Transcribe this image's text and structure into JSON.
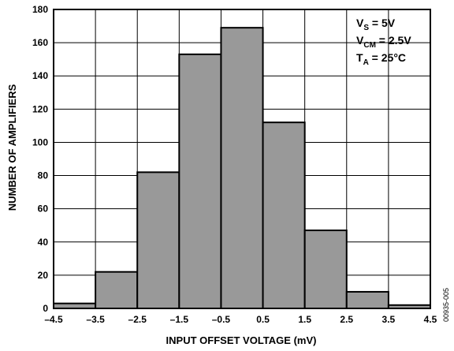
{
  "chart_data": {
    "type": "bar",
    "title": "",
    "xlabel": "INPUT OFFSET VOLTAGE (mV)",
    "ylabel": "NUMBER OF AMPLIFIERS",
    "bin_edges": [
      -4.5,
      -3.5,
      -2.5,
      -1.5,
      -0.5,
      0.5,
      1.5,
      2.5,
      3.5,
      4.5
    ],
    "values": [
      3,
      22,
      82,
      153,
      169,
      112,
      47,
      10,
      2
    ],
    "xlim": [
      -4.5,
      4.5
    ],
    "ylim": [
      0,
      180
    ],
    "xticks": [
      -4.5,
      -3.5,
      -2.5,
      -1.5,
      -0.5,
      0.5,
      1.5,
      2.5,
      3.5,
      4.5
    ],
    "xtick_labels": [
      "–4.5",
      "–3.5",
      "–2.5",
      "–1.5",
      "–0.5",
      "0.5",
      "1.5",
      "2.5",
      "3.5",
      "4.5"
    ],
    "yticks": [
      0,
      20,
      40,
      60,
      80,
      100,
      120,
      140,
      160,
      180
    ],
    "ytick_labels": [
      "0",
      "20",
      "40",
      "60",
      "80",
      "100",
      "120",
      "140",
      "160",
      "180"
    ],
    "grid": true,
    "bar_color": "#999999",
    "annotations": [
      {
        "main": "V",
        "sub": "S",
        "rest": " = 5V"
      },
      {
        "main": "V",
        "sub": "CM",
        "rest": " = 2.5V"
      },
      {
        "main": "T",
        "sub": "A",
        "rest": " = 25°C"
      }
    ],
    "annotation_position": "top-right",
    "figure_id": "00935-005"
  }
}
